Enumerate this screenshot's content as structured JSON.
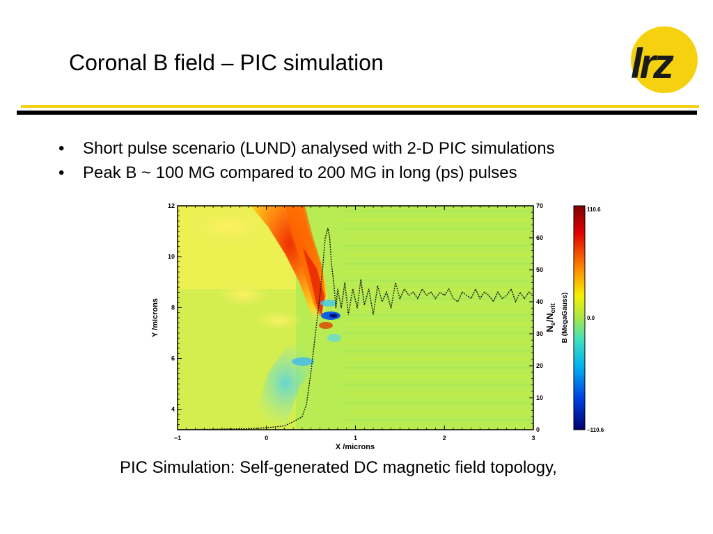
{
  "slide": {
    "title": "Coronal B field – PIC simulation",
    "logo_text": "lrz",
    "bullets": [
      {
        "marker": "•",
        "text": "Short pulse scenario (LUND) analysed with  2-D PIC simulations"
      },
      {
        "marker": "•",
        "text": "Peak B ~ 100 MG compared to 200 MG in long (ps) pulses"
      }
    ],
    "caption": "PIC Simulation: Self-generated DC magnetic field topology,"
  },
  "colors": {
    "accent_yellow": "#f5d10f",
    "rule_black": "#000000"
  },
  "chart_data": {
    "type": "heatmap",
    "title": "",
    "xlabel": "X /microns",
    "ylabel": "Y /microns",
    "right_axis_label": "N",
    "right_axis_sub": "e",
    "right_axis_sep": "/N",
    "right_axis_sub2": "crit",
    "colorbar_label": "B (MegaGauss)",
    "x_ticks": [
      "−1",
      "0",
      "1",
      "2",
      "3"
    ],
    "x_tick_values": [
      -1,
      0,
      1,
      2,
      3
    ],
    "y_ticks": [
      "4",
      "6",
      "8",
      "10",
      "12"
    ],
    "y_tick_values": [
      4,
      6,
      8,
      10,
      12
    ],
    "right_ticks": [
      "0",
      "10",
      "20",
      "30",
      "40",
      "50",
      "60",
      "70"
    ],
    "right_tick_values": [
      0,
      10,
      20,
      30,
      40,
      50,
      60,
      70
    ],
    "colorbar_ticks": [
      "110.6",
      "0.0",
      "−110.6"
    ],
    "colorbar_tick_values": [
      110.6,
      0.0,
      -110.6
    ],
    "xlim": [
      -1,
      3
    ],
    "ylim": [
      3.2,
      12
    ],
    "right_ylim": [
      0,
      70
    ],
    "clim": [
      -110.6,
      110.6
    ],
    "density_profile": {
      "name": "N_e/N_crit",
      "x": [
        -1.0,
        -0.2,
        0.0,
        0.2,
        0.3,
        0.4,
        0.45,
        0.5,
        0.55,
        0.6,
        0.63,
        0.66,
        0.69,
        0.71,
        0.73,
        0.76,
        0.78,
        0.8,
        0.84,
        0.88,
        0.92,
        0.97,
        1.02,
        1.06,
        1.1,
        1.15,
        1.2,
        1.25,
        1.3,
        1.35,
        1.4,
        1.45,
        1.5,
        1.55,
        1.6,
        1.65,
        1.7,
        1.75,
        1.8,
        1.85,
        1.9,
        1.95,
        2.0,
        2.05,
        2.1,
        2.15,
        2.2,
        2.25,
        2.3,
        2.35,
        2.4,
        2.45,
        2.5,
        2.55,
        2.6,
        2.65,
        2.7,
        2.75,
        2.8,
        2.85,
        2.9,
        2.95,
        3.0
      ],
      "y": [
        0,
        0.3,
        0.6,
        1.2,
        2.5,
        4,
        8,
        18,
        30,
        42,
        50,
        60,
        63,
        60,
        52,
        45,
        38,
        44,
        38,
        46,
        36,
        44,
        38,
        47,
        39,
        44,
        36,
        45,
        40,
        43,
        38,
        46,
        41,
        44,
        42,
        43,
        41,
        44,
        42,
        43,
        41,
        43,
        42,
        44,
        41,
        40,
        43,
        42,
        41,
        44,
        41,
        43,
        42,
        40,
        43,
        41,
        42,
        44,
        40,
        43,
        41,
        43,
        42
      ]
    },
    "notable_features": {
      "field_peak_region_positive": {
        "x": 0.6,
        "y": 8.2,
        "value": 100
      },
      "field_peak_region_negative": {
        "x": 0.75,
        "y": 7.6,
        "value": -100
      }
    }
  }
}
